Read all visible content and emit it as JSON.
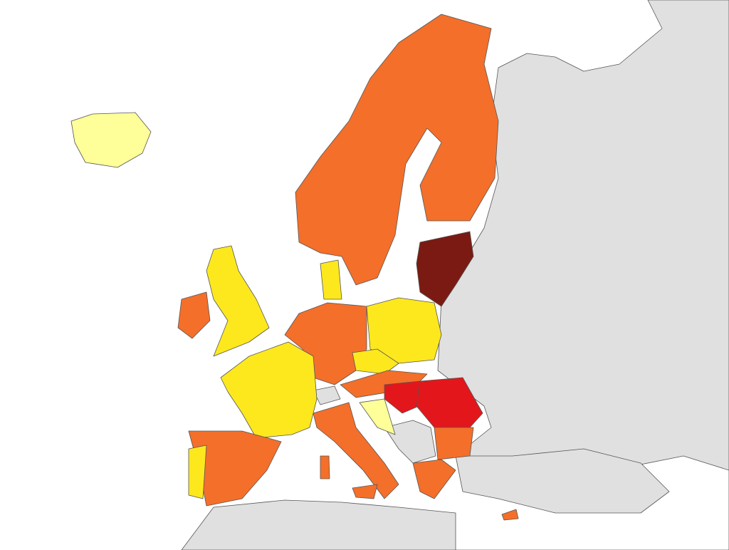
{
  "map": {
    "colors": {
      "sea": "#ffffff",
      "land": "#e0e0e0",
      "pale": "#ffff99",
      "yellow": "#fde81e",
      "orange": "#f46f2a",
      "red": "#e3171b",
      "dark": "#7b1a12"
    }
  }
}
